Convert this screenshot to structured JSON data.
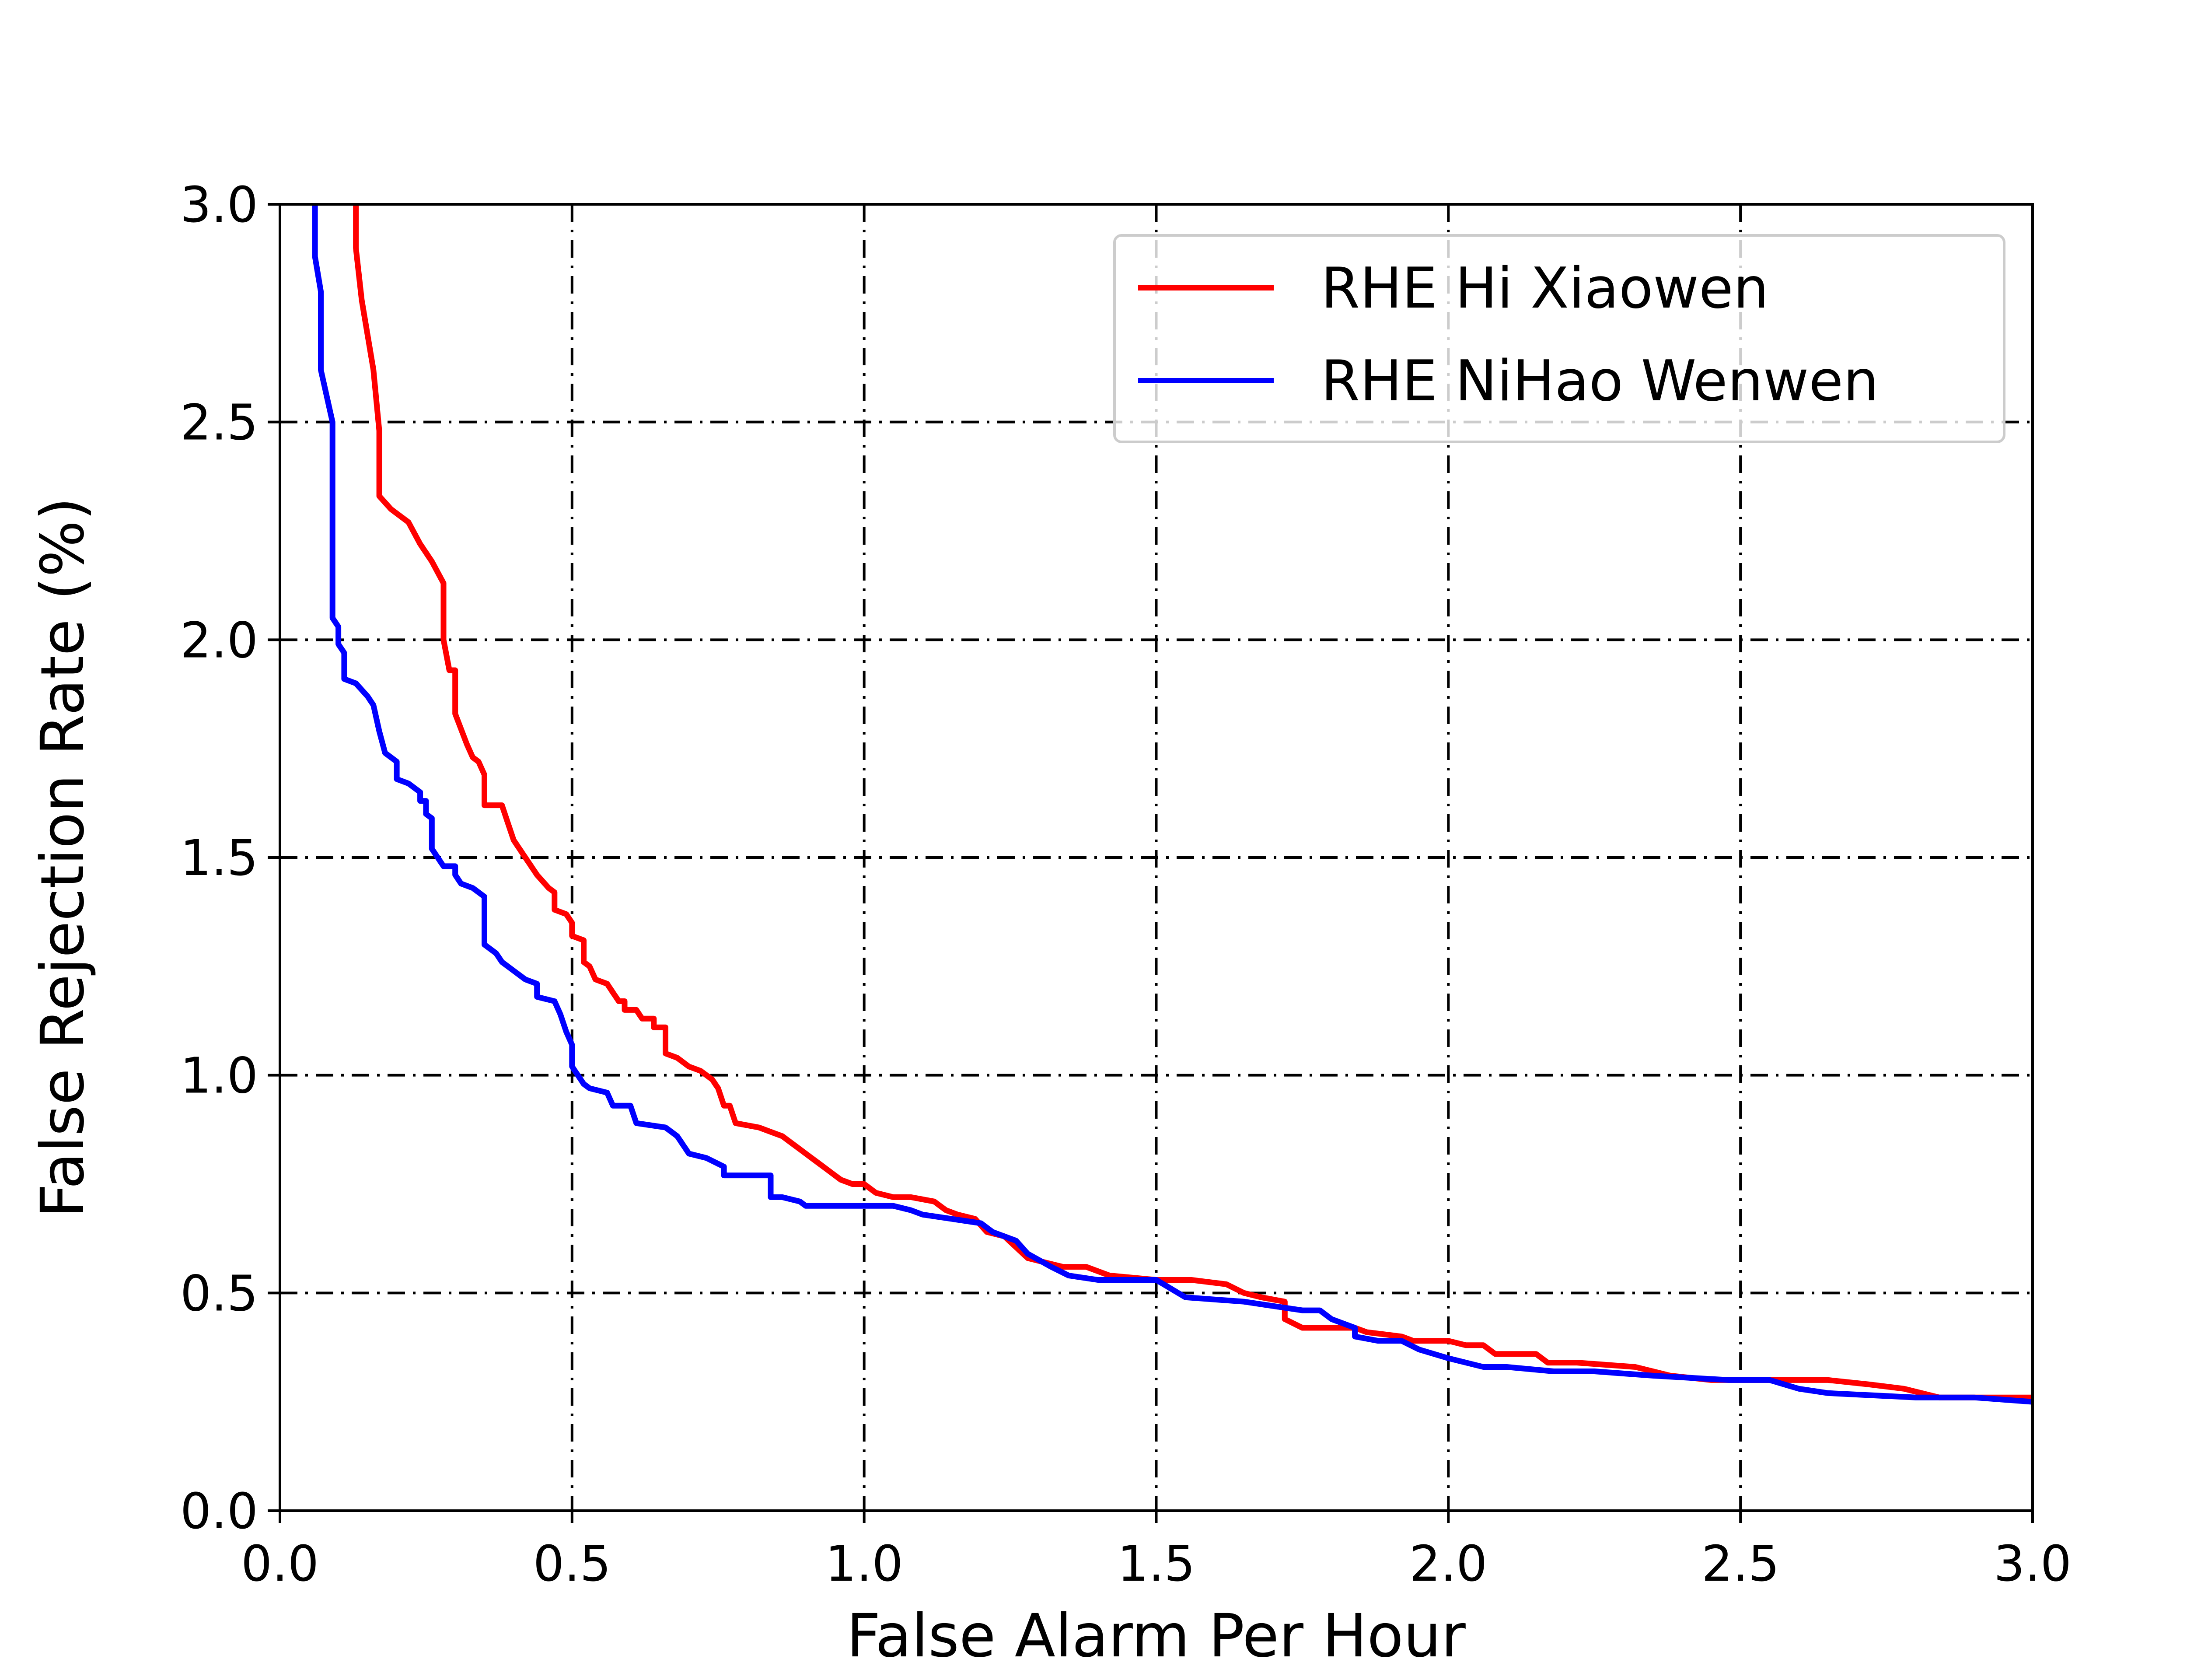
{
  "chart_data": {
    "type": "line",
    "title": "",
    "xlabel": "False Alarm Per Hour",
    "ylabel": "False Rejection Rate (%)",
    "xlim": [
      0.0,
      3.0
    ],
    "ylim": [
      0.0,
      3.0
    ],
    "xticks": [
      "0.0",
      "0.5",
      "1.0",
      "1.5",
      "2.0",
      "2.5",
      "3.0"
    ],
    "yticks": [
      "0.0",
      "0.5",
      "1.0",
      "1.5",
      "2.0",
      "2.5",
      "3.0"
    ],
    "grid": true,
    "legend_position": "top-right",
    "series": [
      {
        "name": "RHE Hi Xiaowen",
        "color": "#ff0000",
        "points": [
          [
            0.13,
            3.0
          ],
          [
            0.13,
            2.9
          ],
          [
            0.14,
            2.78
          ],
          [
            0.16,
            2.62
          ],
          [
            0.17,
            2.48
          ],
          [
            0.17,
            2.33
          ],
          [
            0.19,
            2.3
          ],
          [
            0.22,
            2.27
          ],
          [
            0.24,
            2.22
          ],
          [
            0.26,
            2.18
          ],
          [
            0.28,
            2.13
          ],
          [
            0.28,
            2.0
          ],
          [
            0.29,
            1.93
          ],
          [
            0.3,
            1.93
          ],
          [
            0.3,
            1.83
          ],
          [
            0.32,
            1.76
          ],
          [
            0.33,
            1.73
          ],
          [
            0.34,
            1.72
          ],
          [
            0.35,
            1.69
          ],
          [
            0.35,
            1.62
          ],
          [
            0.38,
            1.62
          ],
          [
            0.39,
            1.58
          ],
          [
            0.4,
            1.54
          ],
          [
            0.42,
            1.5
          ],
          [
            0.44,
            1.46
          ],
          [
            0.46,
            1.43
          ],
          [
            0.47,
            1.42
          ],
          [
            0.47,
            1.38
          ],
          [
            0.49,
            1.37
          ],
          [
            0.5,
            1.35
          ],
          [
            0.5,
            1.32
          ],
          [
            0.52,
            1.31
          ],
          [
            0.52,
            1.26
          ],
          [
            0.53,
            1.25
          ],
          [
            0.54,
            1.22
          ],
          [
            0.56,
            1.21
          ],
          [
            0.57,
            1.19
          ],
          [
            0.58,
            1.17
          ],
          [
            0.59,
            1.17
          ],
          [
            0.59,
            1.15
          ],
          [
            0.61,
            1.15
          ],
          [
            0.62,
            1.13
          ],
          [
            0.64,
            1.13
          ],
          [
            0.64,
            1.11
          ],
          [
            0.66,
            1.11
          ],
          [
            0.66,
            1.05
          ],
          [
            0.68,
            1.04
          ],
          [
            0.7,
            1.02
          ],
          [
            0.72,
            1.01
          ],
          [
            0.74,
            0.99
          ],
          [
            0.75,
            0.97
          ],
          [
            0.76,
            0.93
          ],
          [
            0.77,
            0.93
          ],
          [
            0.78,
            0.89
          ],
          [
            0.82,
            0.88
          ],
          [
            0.86,
            0.86
          ],
          [
            0.88,
            0.84
          ],
          [
            0.9,
            0.82
          ],
          [
            0.92,
            0.8
          ],
          [
            0.94,
            0.78
          ],
          [
            0.96,
            0.76
          ],
          [
            0.98,
            0.75
          ],
          [
            1.0,
            0.75
          ],
          [
            1.02,
            0.73
          ],
          [
            1.05,
            0.72
          ],
          [
            1.08,
            0.72
          ],
          [
            1.12,
            0.71
          ],
          [
            1.14,
            0.69
          ],
          [
            1.16,
            0.68
          ],
          [
            1.19,
            0.67
          ],
          [
            1.21,
            0.64
          ],
          [
            1.24,
            0.63
          ],
          [
            1.28,
            0.58
          ],
          [
            1.31,
            0.57
          ],
          [
            1.34,
            0.56
          ],
          [
            1.38,
            0.56
          ],
          [
            1.42,
            0.54
          ],
          [
            1.5,
            0.53
          ],
          [
            1.56,
            0.53
          ],
          [
            1.62,
            0.52
          ],
          [
            1.65,
            0.5
          ],
          [
            1.68,
            0.49
          ],
          [
            1.72,
            0.48
          ],
          [
            1.72,
            0.44
          ],
          [
            1.75,
            0.42
          ],
          [
            1.84,
            0.42
          ],
          [
            1.86,
            0.41
          ],
          [
            1.92,
            0.4
          ],
          [
            1.94,
            0.39
          ],
          [
            2.0,
            0.39
          ],
          [
            2.03,
            0.38
          ],
          [
            2.06,
            0.38
          ],
          [
            2.08,
            0.36
          ],
          [
            2.15,
            0.36
          ],
          [
            2.17,
            0.34
          ],
          [
            2.22,
            0.34
          ],
          [
            2.32,
            0.33
          ],
          [
            2.38,
            0.31
          ],
          [
            2.45,
            0.3
          ],
          [
            2.55,
            0.3
          ],
          [
            2.65,
            0.3
          ],
          [
            2.72,
            0.29
          ],
          [
            2.78,
            0.28
          ],
          [
            2.84,
            0.26
          ],
          [
            2.9,
            0.26
          ],
          [
            3.0,
            0.26
          ]
        ]
      },
      {
        "name": "RHE NiHao Wenwen",
        "color": "#0000ff",
        "points": [
          [
            0.06,
            3.0
          ],
          [
            0.06,
            2.88
          ],
          [
            0.07,
            2.8
          ],
          [
            0.07,
            2.62
          ],
          [
            0.09,
            2.5
          ],
          [
            0.09,
            2.05
          ],
          [
            0.1,
            2.03
          ],
          [
            0.1,
            1.99
          ],
          [
            0.11,
            1.97
          ],
          [
            0.11,
            1.91
          ],
          [
            0.13,
            1.9
          ],
          [
            0.15,
            1.87
          ],
          [
            0.16,
            1.85
          ],
          [
            0.17,
            1.79
          ],
          [
            0.18,
            1.74
          ],
          [
            0.2,
            1.72
          ],
          [
            0.2,
            1.68
          ],
          [
            0.22,
            1.67
          ],
          [
            0.24,
            1.65
          ],
          [
            0.24,
            1.63
          ],
          [
            0.25,
            1.63
          ],
          [
            0.25,
            1.6
          ],
          [
            0.26,
            1.59
          ],
          [
            0.26,
            1.52
          ],
          [
            0.28,
            1.48
          ],
          [
            0.3,
            1.48
          ],
          [
            0.3,
            1.46
          ],
          [
            0.31,
            1.44
          ],
          [
            0.33,
            1.43
          ],
          [
            0.35,
            1.41
          ],
          [
            0.35,
            1.3
          ],
          [
            0.37,
            1.28
          ],
          [
            0.38,
            1.26
          ],
          [
            0.4,
            1.24
          ],
          [
            0.42,
            1.22
          ],
          [
            0.44,
            1.21
          ],
          [
            0.44,
            1.18
          ],
          [
            0.47,
            1.17
          ],
          [
            0.48,
            1.14
          ],
          [
            0.49,
            1.1
          ],
          [
            0.5,
            1.07
          ],
          [
            0.5,
            1.02
          ],
          [
            0.52,
            0.98
          ],
          [
            0.53,
            0.97
          ],
          [
            0.56,
            0.96
          ],
          [
            0.57,
            0.93
          ],
          [
            0.6,
            0.93
          ],
          [
            0.61,
            0.89
          ],
          [
            0.66,
            0.88
          ],
          [
            0.68,
            0.86
          ],
          [
            0.7,
            0.82
          ],
          [
            0.73,
            0.81
          ],
          [
            0.76,
            0.79
          ],
          [
            0.76,
            0.77
          ],
          [
            0.8,
            0.77
          ],
          [
            0.84,
            0.77
          ],
          [
            0.84,
            0.72
          ],
          [
            0.86,
            0.72
          ],
          [
            0.89,
            0.71
          ],
          [
            0.9,
            0.7
          ],
          [
            0.95,
            0.7
          ],
          [
            1.05,
            0.7
          ],
          [
            1.08,
            0.69
          ],
          [
            1.1,
            0.68
          ],
          [
            1.15,
            0.67
          ],
          [
            1.2,
            0.66
          ],
          [
            1.22,
            0.64
          ],
          [
            1.26,
            0.62
          ],
          [
            1.28,
            0.59
          ],
          [
            1.32,
            0.56
          ],
          [
            1.35,
            0.54
          ],
          [
            1.4,
            0.53
          ],
          [
            1.5,
            0.53
          ],
          [
            1.55,
            0.49
          ],
          [
            1.65,
            0.48
          ],
          [
            1.7,
            0.47
          ],
          [
            1.75,
            0.46
          ],
          [
            1.78,
            0.46
          ],
          [
            1.8,
            0.44
          ],
          [
            1.84,
            0.42
          ],
          [
            1.84,
            0.4
          ],
          [
            1.88,
            0.39
          ],
          [
            1.92,
            0.39
          ],
          [
            1.95,
            0.37
          ],
          [
            2.0,
            0.35
          ],
          [
            2.06,
            0.33
          ],
          [
            2.1,
            0.33
          ],
          [
            2.18,
            0.32
          ],
          [
            2.25,
            0.32
          ],
          [
            2.35,
            0.31
          ],
          [
            2.48,
            0.3
          ],
          [
            2.55,
            0.3
          ],
          [
            2.6,
            0.28
          ],
          [
            2.65,
            0.27
          ],
          [
            2.8,
            0.26
          ],
          [
            2.9,
            0.26
          ],
          [
            3.0,
            0.25
          ]
        ]
      }
    ]
  }
}
